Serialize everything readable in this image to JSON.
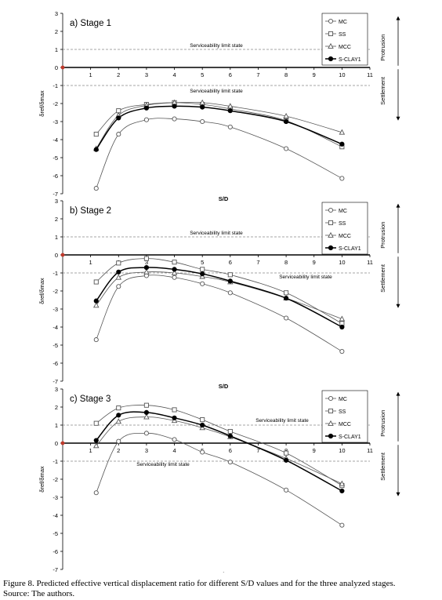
{
  "figure": {
    "caption": "Figure 8. Predicted effective vertical displacement ratio for different S/D values and for the three analyzed stages.",
    "source": "Source: The authors."
  },
  "shared": {
    "xlabel": "S/D",
    "ylabel": "δref/δmax",
    "x_ticks": [
      1,
      2,
      3,
      4,
      5,
      6,
      7,
      8,
      9,
      10,
      11
    ],
    "y_ticks": [
      -7,
      -6,
      -5,
      -4,
      -3,
      -2,
      -1,
      0,
      1,
      2,
      3
    ],
    "protrusion_label": "Protrusion",
    "settlement_label": "Settlement",
    "serviceability_label": "Serviceability limit state",
    "colors": {
      "line": "#555555",
      "s_clay1": "#000000",
      "dashed": "#888888",
      "axis": "#000000"
    },
    "markers": {
      "MC": "circle-open",
      "SS": "square-open",
      "MCC": "triangle-open",
      "S-CLAY1": "circle-filled"
    }
  },
  "chart_data": [
    {
      "type": "line",
      "title": "a) Stage 1",
      "xlabel": "S/D",
      "ylabel": "δref/δmax",
      "xlim": [
        0,
        11
      ],
      "ylim": [
        -7,
        3
      ],
      "legend": "top-right",
      "reference_lines": [
        1,
        -1
      ],
      "series": [
        {
          "name": "MC",
          "x": [
            1.2,
            2,
            3,
            4,
            5,
            6,
            8,
            10
          ],
          "y": [
            -6.7,
            -3.7,
            -2.9,
            -2.85,
            -3.0,
            -3.3,
            -4.5,
            -6.15
          ]
        },
        {
          "name": "SS",
          "x": [
            1.2,
            2,
            3,
            4,
            5,
            6,
            8,
            10
          ],
          "y": [
            -3.7,
            -2.4,
            -2.05,
            -1.95,
            -2.05,
            -2.3,
            -2.95,
            -4.4
          ]
        },
        {
          "name": "MCC",
          "x": [
            1.2,
            2,
            3,
            4,
            5,
            6,
            8,
            10
          ],
          "y": [
            -4.5,
            -2.65,
            -2.1,
            -1.95,
            -1.95,
            -2.15,
            -2.7,
            -3.6
          ]
        },
        {
          "name": "S-CLAY1",
          "x": [
            1.2,
            2,
            3,
            4,
            5,
            6,
            8,
            10
          ],
          "y": [
            -4.55,
            -2.8,
            -2.25,
            -2.15,
            -2.2,
            -2.4,
            -3.0,
            -4.25
          ]
        }
      ]
    },
    {
      "type": "line",
      "title": "b) Stage 2",
      "xlabel": "S/D",
      "ylabel": "δref/δmax",
      "xlim": [
        0,
        11
      ],
      "ylim": [
        -7,
        3
      ],
      "legend": "top-right",
      "reference_lines": [
        1,
        -1
      ],
      "series": [
        {
          "name": "MC",
          "x": [
            1.2,
            2,
            3,
            4,
            5,
            6,
            8,
            10
          ],
          "y": [
            -4.7,
            -1.75,
            -1.15,
            -1.25,
            -1.6,
            -2.1,
            -3.5,
            -5.35
          ]
        },
        {
          "name": "SS",
          "x": [
            1.2,
            2,
            3,
            4,
            5,
            6,
            8,
            10
          ],
          "y": [
            -1.5,
            -0.45,
            -0.2,
            -0.4,
            -0.8,
            -1.1,
            -2.1,
            -3.8
          ]
        },
        {
          "name": "MCC",
          "x": [
            1.2,
            2,
            3,
            4,
            5,
            6,
            8,
            10
          ],
          "y": [
            -2.8,
            -1.25,
            -0.95,
            -1.0,
            -1.2,
            -1.5,
            -2.4,
            -3.55
          ]
        },
        {
          "name": "S-CLAY1",
          "x": [
            1.2,
            2,
            3,
            4,
            5,
            6,
            8,
            10
          ],
          "y": [
            -2.55,
            -0.95,
            -0.7,
            -0.8,
            -1.05,
            -1.45,
            -2.4,
            -4.0
          ]
        }
      ]
    },
    {
      "type": "line",
      "title": "c) Stage 3",
      "xlabel": "S/D",
      "ylabel": "δref/δmax",
      "xlim": [
        0,
        11
      ],
      "ylim": [
        -7,
        3
      ],
      "legend": "right",
      "reference_lines": [
        1,
        -1
      ],
      "series": [
        {
          "name": "MC",
          "x": [
            1.2,
            2,
            3,
            4,
            5,
            6,
            8,
            10
          ],
          "y": [
            -2.75,
            0.1,
            0.55,
            0.2,
            -0.5,
            -1.05,
            -2.6,
            -4.55
          ]
        },
        {
          "name": "SS",
          "x": [
            1.2,
            2,
            3,
            4,
            5,
            6,
            8,
            10
          ],
          "y": [
            1.1,
            1.95,
            2.1,
            1.85,
            1.3,
            0.65,
            -0.55,
            -2.35
          ]
        },
        {
          "name": "MCC",
          "x": [
            1.2,
            2,
            3,
            4,
            5,
            6,
            8,
            10
          ],
          "y": [
            -0.15,
            1.2,
            1.45,
            1.25,
            0.85,
            0.35,
            -0.85,
            -2.25
          ]
        },
        {
          "name": "S-CLAY1",
          "x": [
            1.2,
            2,
            3,
            4,
            5,
            6,
            8,
            10
          ],
          "y": [
            0.15,
            1.55,
            1.7,
            1.4,
            1.0,
            0.4,
            -0.95,
            -2.65
          ]
        }
      ]
    }
  ]
}
